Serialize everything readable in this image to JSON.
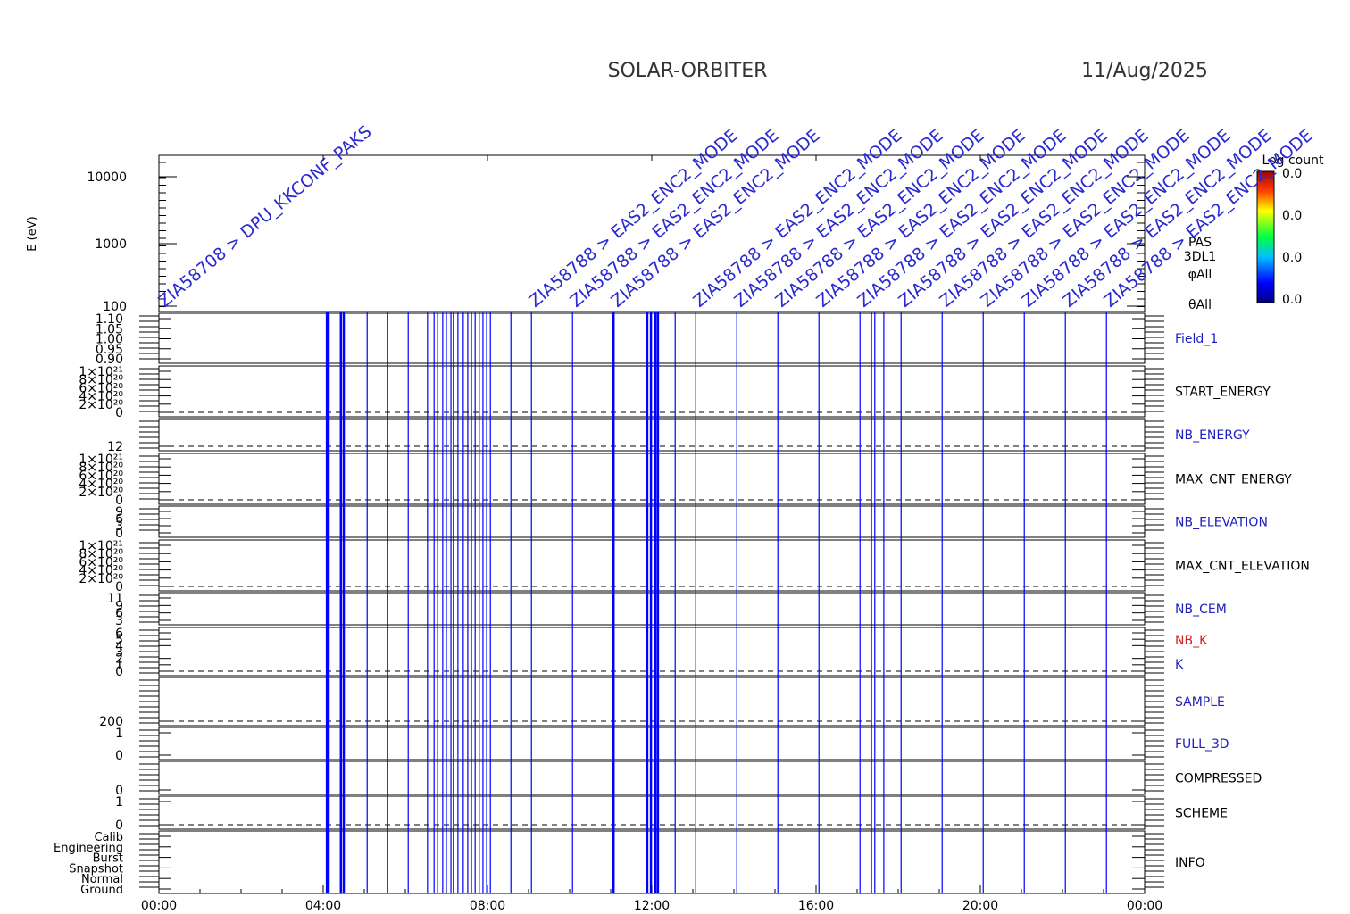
{
  "header": {
    "title": "SOLAR-ORBITER",
    "date": "11/Aug/2025"
  },
  "x_axis": {
    "xlim": [
      0,
      24
    ],
    "xticks": [
      {
        "value": 0,
        "label": "00:00"
      },
      {
        "value": 4,
        "label": "04:00"
      },
      {
        "value": 8,
        "label": "08:00"
      },
      {
        "value": 12,
        "label": "12:00"
      },
      {
        "value": 16,
        "label": "16:00"
      },
      {
        "value": 20,
        "label": "20:00"
      },
      {
        "value": 24,
        "label": "00:00"
      }
    ]
  },
  "spectrogram": {
    "ylabel": "E (eV)",
    "yticks": [
      "10000",
      "1000",
      "100"
    ],
    "right_labels": [
      "PAS",
      "3DL1",
      "φAll",
      "θAll"
    ]
  },
  "colorbar": {
    "title": "Log count",
    "ticks": [
      "0.0",
      "0.0",
      "0.0",
      "0.0"
    ]
  },
  "panels": [
    {
      "label": "Field_1",
      "color": "#2020c0",
      "ticks": [
        "1.10",
        "1.05",
        "1.00",
        "0.95",
        "0.90"
      ]
    },
    {
      "label": "START_ENERGY",
      "color": "#000000",
      "ticks": [
        "1×10²¹",
        "8×10²⁰",
        "6×10²⁰",
        "4×10²⁰",
        "2×10²⁰",
        "0"
      ]
    },
    {
      "label": "NB_ENERGY",
      "color": "#2020c0",
      "ticks": [
        "12"
      ]
    },
    {
      "label": "MAX_CNT_ENERGY",
      "color": "#000000",
      "ticks": [
        "1×10²¹",
        "8×10²⁰",
        "6×10²⁰",
        "4×10²⁰",
        "2×10²⁰",
        "0"
      ]
    },
    {
      "label": "NB_ELEVATION",
      "color": "#2020c0",
      "ticks": [
        "9",
        "6",
        "3",
        "0"
      ]
    },
    {
      "label": "MAX_CNT_ELEVATION",
      "color": "#000000",
      "ticks": [
        "1×10²¹",
        "8×10²⁰",
        "6×10²⁰",
        "4×10²⁰",
        "2×10²⁰",
        "0"
      ]
    },
    {
      "label": "NB_CEM",
      "color": "#2020c0",
      "ticks": [
        "11",
        "9",
        "6",
        "3"
      ]
    },
    {
      "label": "NB_K",
      "color": "#d02020",
      "ticks": [
        "6",
        "5",
        "4",
        "3",
        "2",
        "1",
        "0"
      ]
    },
    {
      "label": "SAMPLE",
      "color": "#2020c0",
      "ticks": [
        "200"
      ]
    },
    {
      "label": "FULL_3D",
      "color": "#2020c0",
      "ticks": [
        "1",
        "0"
      ]
    },
    {
      "label": "COMPRESSED",
      "color": "#000000",
      "ticks": [
        "0"
      ]
    },
    {
      "label": "SCHEME",
      "color": "#000000",
      "ticks": [
        "1",
        "0"
      ]
    },
    {
      "label": "INFO",
      "color": "#000000",
      "ticks": [
        "Calib",
        "Engineering",
        "Burst",
        "Snapshot",
        "Normal",
        "Ground"
      ]
    }
  ],
  "k_label": {
    "label": "K",
    "color": "#2020c0"
  },
  "events": {
    "color": "#0000ff",
    "times": [
      4.09,
      4.13,
      4.43,
      4.5,
      5.07,
      5.57,
      6.07,
      6.54,
      6.7,
      6.78,
      6.91,
      7.0,
      7.11,
      7.17,
      7.28,
      7.41,
      7.52,
      7.61,
      7.7,
      7.8,
      7.89,
      7.98,
      8.07,
      8.57,
      9.07,
      10.07,
      11.07,
      11.89,
      11.98,
      12.09,
      12.15,
      12.57,
      13.07,
      14.07,
      15.07,
      16.07,
      17.07,
      17.35,
      17.43,
      17.65,
      18.07,
      19.07,
      20.07,
      21.07,
      22.07,
      23.07
    ]
  },
  "event_labels": [
    {
      "t": 0.05,
      "text": "ZIA58708 > DPU_KKCONF_PAKS"
    },
    {
      "t": 9.07,
      "text": "ZIA58788 > EAS2_ENC2_MODE"
    },
    {
      "t": 10.07,
      "text": "ZIA58788 > EAS2_ENC2_MODE"
    },
    {
      "t": 11.07,
      "text": "ZIA58788 > EAS2_ENC2_MODE"
    },
    {
      "t": 13.07,
      "text": "ZIA58788 > EAS2_ENC2_MODE"
    },
    {
      "t": 14.07,
      "text": "ZIA58788 > EAS2_ENC2_MODE"
    },
    {
      "t": 15.07,
      "text": "ZIA58788 > EAS2_ENC2_MODE"
    },
    {
      "t": 16.07,
      "text": "ZIA58788 > EAS2_ENC2_MODE"
    },
    {
      "t": 17.07,
      "text": "ZIA58788 > EAS2_ENC2_MODE"
    },
    {
      "t": 18.07,
      "text": "ZIA58788 > EAS2_ENC2_MODE"
    },
    {
      "t": 19.07,
      "text": "ZIA58788 > EAS2_ENC2_MODE"
    },
    {
      "t": 20.07,
      "text": "ZIA58788 > EAS2_ENC2_MODE"
    },
    {
      "t": 21.07,
      "text": "ZIA58788 > EAS2_ENC2_MODE"
    },
    {
      "t": 22.07,
      "text": "ZIA58788 > EAS2_ENC2_MODE"
    },
    {
      "t": 23.07,
      "text": "ZIA58788 > EAS2_ENC2_MODE"
    }
  ]
}
